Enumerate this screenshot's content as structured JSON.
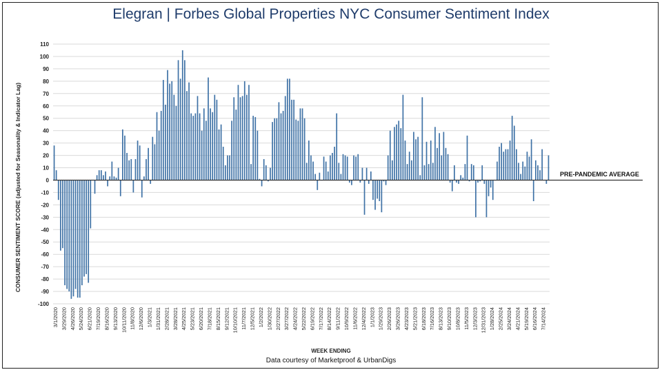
{
  "title_brand": "Elegran | Forbes Global Properties",
  "title_rest": " NYC Consumer Sentiment Index",
  "chart_data": {
    "type": "bar",
    "title": "Elegran | Forbes Global Properties NYC Consumer Sentiment Index",
    "xlabel": "WEEK ENDING",
    "ylabel": "CONSUMER SENTIMENT SCORE (adjusted for Seasonality & Indicator Lag)",
    "ylim": [
      -100,
      110
    ],
    "yticks": [
      110,
      100,
      90,
      80,
      70,
      60,
      50,
      40,
      30,
      20,
      10,
      0,
      -10,
      -20,
      -30,
      -40,
      -50,
      -60,
      -70,
      -80,
      -90,
      -100
    ],
    "grid": true,
    "reference_line": {
      "value": 0,
      "label": "PRE-PANDEMIC AVERAGE"
    },
    "x_tick_labels": [
      "3/1/2020",
      "3/29/2020",
      "4/26/2020",
      "5/24/2020",
      "6/21/2020",
      "7/19/2020",
      "8/16/2020",
      "9/13/2020",
      "10/11/2020",
      "11/8/2020",
      "12/6/2020",
      "1/3/2021",
      "1/31/2021",
      "2/28/2021",
      "3/28/2021",
      "4/25/2021",
      "5/23/2021",
      "6/20/2021",
      "7/18/2021",
      "8/15/2021",
      "9/12/2021",
      "10/10/2021",
      "11/7/2021",
      "12/5/2021",
      "1/2/2022",
      "1/30/2022",
      "2/27/2022",
      "3/27/2022",
      "4/24/2022",
      "5/22/2022",
      "6/19/2022",
      "7/17/2022",
      "8/14/2022",
      "9/11/2022",
      "10/9/2022",
      "11/6/2022",
      "12/4/2022",
      "1/1/2023",
      "1/29/2023",
      "2/26/2023",
      "3/26/2023",
      "4/23/2023",
      "5/21/2023",
      "6/18/2023",
      "7/16/2023",
      "8/13/2023",
      "9/10/2023",
      "10/8/2023",
      "11/5/2023",
      "12/3/2023",
      "12/31/2023",
      "1/28/2024",
      "2/25/2024",
      "3/24/2024",
      "4/21/2024",
      "5/19/2024",
      "6/16/2024",
      "7/14/2024"
    ],
    "values": [
      28,
      8,
      -16,
      -57,
      -55,
      -85,
      -88,
      -90,
      -96,
      -94,
      -88,
      -95,
      -95,
      -85,
      -78,
      -76,
      -83,
      -39,
      0,
      -11,
      4,
      8,
      8,
      4,
      7,
      -5,
      3,
      15,
      3,
      2,
      10,
      -13,
      41,
      36,
      22,
      16,
      17,
      -10,
      17,
      32,
      28,
      -14,
      3,
      17,
      26,
      -3,
      35,
      29,
      55,
      40,
      56,
      81,
      61,
      89,
      78,
      80,
      69,
      60,
      97,
      82,
      105,
      97,
      72,
      79,
      54,
      52,
      54,
      68,
      54,
      40,
      58,
      48,
      83,
      58,
      55,
      69,
      65,
      41,
      45,
      27,
      12,
      20,
      20,
      48,
      67,
      57,
      77,
      67,
      68,
      80,
      69,
      77,
      13,
      52,
      51,
      40,
      1,
      -5,
      17,
      12,
      -1,
      10,
      47,
      50,
      50,
      63,
      54,
      56,
      68,
      82,
      82,
      65,
      65,
      49,
      48,
      58,
      58,
      50,
      14,
      32,
      20,
      15,
      5,
      -8,
      6,
      0,
      19,
      15,
      7,
      20,
      22,
      27,
      54,
      14,
      5,
      21,
      20,
      19,
      -2,
      -4,
      20,
      19,
      21,
      -2,
      10,
      -28,
      10,
      -3,
      7,
      -16,
      -24,
      -15,
      -17,
      -26,
      -1,
      -4,
      20,
      40,
      16,
      43,
      45,
      48,
      42,
      69,
      32,
      13,
      23,
      16,
      39,
      33,
      35,
      4,
      67,
      12,
      31,
      13,
      32,
      14,
      43,
      26,
      38,
      20,
      39,
      26,
      21,
      -2,
      -9,
      12,
      -2,
      -3,
      4,
      2,
      13,
      36,
      -1,
      13,
      12,
      -30,
      -2,
      -1,
      12,
      -3,
      -30,
      -13,
      -6,
      -16,
      0,
      15,
      27,
      30,
      23,
      25,
      25,
      32,
      52,
      44,
      25,
      14,
      5,
      15,
      11,
      23,
      19,
      33,
      -17,
      16,
      12,
      8,
      25,
      0,
      -3,
      20
    ]
  }
}
